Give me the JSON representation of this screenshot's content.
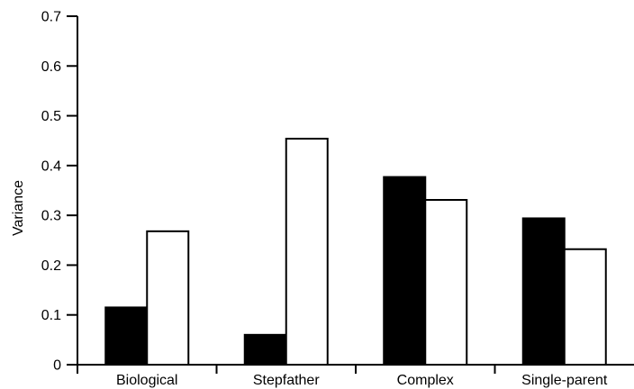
{
  "chart_data": {
    "type": "bar",
    "categories": [
      "Biological",
      "Stepfather",
      "Complex",
      "Single-parent"
    ],
    "series": [
      {
        "values": [
          0.115,
          0.06,
          0.377,
          0.294
        ],
        "color": "#000000"
      },
      {
        "values": [
          0.268,
          0.454,
          0.331,
          0.232
        ],
        "color": "#ffffff"
      }
    ],
    "title": "",
    "xlabel": "",
    "ylabel": "Variance",
    "ylim": [
      0,
      0.7
    ],
    "yticks": [
      "0",
      "0.1",
      "0.2",
      "0.3",
      "0.4",
      "0.5",
      "0.6",
      "0.7"
    ],
    "grid": false,
    "legend": "none"
  }
}
